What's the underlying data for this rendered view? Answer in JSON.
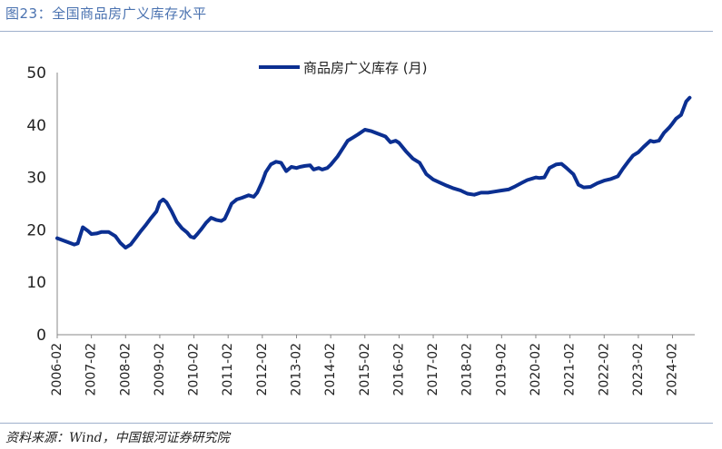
{
  "header": {
    "title": "图23：全国商品房广义库存水平"
  },
  "footer": {
    "source": "资料来源：Wind，中国银河证券研究院"
  },
  "colors": {
    "series": "#0b2f91",
    "axis": "#888888",
    "title": "#4a72b0"
  },
  "chart_data": {
    "type": "line",
    "title": "",
    "xlabel": "",
    "ylabel": "",
    "ylim": [
      0,
      50
    ],
    "yticks": [
      0,
      10,
      20,
      30,
      40,
      50
    ],
    "xticks": [
      "2006-02",
      "2007-02",
      "2008-02",
      "2009-02",
      "2010-02",
      "2011-02",
      "2012-02",
      "2013-02",
      "2014-02",
      "2015-02",
      "2016-02",
      "2017-02",
      "2018-02",
      "2019-02",
      "2020-02",
      "2021-02",
      "2022-02",
      "2023-02",
      "2024-02"
    ],
    "legend": "top-center",
    "series": [
      {
        "name": "商品房广义库存 (月)",
        "x": [
          2006.0,
          2006.25,
          2006.5,
          2006.6,
          2006.75,
          2006.9,
          2007.0,
          2007.15,
          2007.3,
          2007.5,
          2007.7,
          2007.85,
          2008.0,
          2008.15,
          2008.3,
          2008.45,
          2008.6,
          2008.75,
          2008.9,
          2009.0,
          2009.1,
          2009.2,
          2009.35,
          2009.5,
          2009.65,
          2009.8,
          2009.9,
          2010.0,
          2010.1,
          2010.2,
          2010.35,
          2010.5,
          2010.65,
          2010.8,
          2010.9,
          2011.0,
          2011.1,
          2011.25,
          2011.4,
          2011.6,
          2011.75,
          2011.85,
          2012.0,
          2012.1,
          2012.25,
          2012.4,
          2012.55,
          2012.7,
          2012.85,
          2013.0,
          2013.1,
          2013.25,
          2013.4,
          2013.5,
          2013.65,
          2013.75,
          2013.9,
          2014.0,
          2014.2,
          2014.35,
          2014.5,
          2014.65,
          2014.8,
          2015.0,
          2015.2,
          2015.4,
          2015.6,
          2015.75,
          2015.9,
          2016.0,
          2016.2,
          2016.4,
          2016.6,
          2016.8,
          2017.0,
          2017.2,
          2017.4,
          2017.6,
          2017.8,
          2018.0,
          2018.2,
          2018.4,
          2018.6,
          2018.8,
          2019.0,
          2019.2,
          2019.4,
          2019.6,
          2019.75,
          2019.9,
          2020.0,
          2020.1,
          2020.25,
          2020.4,
          2020.6,
          2020.75,
          2020.9,
          2021.0,
          2021.1,
          2021.25,
          2021.4,
          2021.6,
          2021.8,
          2022.0,
          2022.2,
          2022.4,
          2022.55,
          2022.7,
          2022.85,
          2023.0,
          2023.15,
          2023.35,
          2023.45,
          2023.6,
          2023.75,
          2023.9,
          2024.0,
          2024.1,
          2024.25,
          2024.4,
          2024.5
        ],
        "values": [
          18.4,
          17.8,
          17.2,
          17.4,
          20.5,
          19.8,
          19.2,
          19.3,
          19.6,
          19.6,
          18.8,
          17.5,
          16.6,
          17.2,
          18.5,
          19.8,
          21.0,
          22.3,
          23.5,
          25.3,
          25.8,
          25.2,
          23.5,
          21.5,
          20.3,
          19.5,
          18.7,
          18.5,
          19.2,
          20.0,
          21.3,
          22.3,
          21.9,
          21.7,
          22.1,
          23.5,
          25.0,
          25.8,
          26.1,
          26.6,
          26.3,
          27.1,
          29.2,
          31.0,
          32.5,
          33.0,
          32.8,
          31.2,
          32.0,
          31.8,
          32.0,
          32.2,
          32.3,
          31.5,
          31.8,
          31.5,
          31.8,
          32.4,
          34.0,
          35.5,
          37.0,
          37.6,
          38.2,
          39.1,
          38.8,
          38.3,
          37.8,
          36.7,
          37.0,
          36.6,
          35.0,
          33.6,
          32.8,
          30.6,
          29.6,
          29.0,
          28.4,
          27.9,
          27.5,
          26.9,
          26.7,
          27.1,
          27.1,
          27.3,
          27.5,
          27.7,
          28.3,
          29.0,
          29.5,
          29.8,
          30.0,
          29.9,
          30.0,
          31.8,
          32.5,
          32.6,
          31.8,
          31.2,
          30.6,
          28.6,
          28.1,
          28.2,
          28.9,
          29.4,
          29.7,
          30.2,
          31.7,
          33.0,
          34.2,
          34.8,
          35.8,
          37.0,
          36.8,
          37.0,
          38.5,
          39.5,
          40.3,
          41.2,
          41.9,
          44.5,
          45.2
        ]
      }
    ]
  }
}
